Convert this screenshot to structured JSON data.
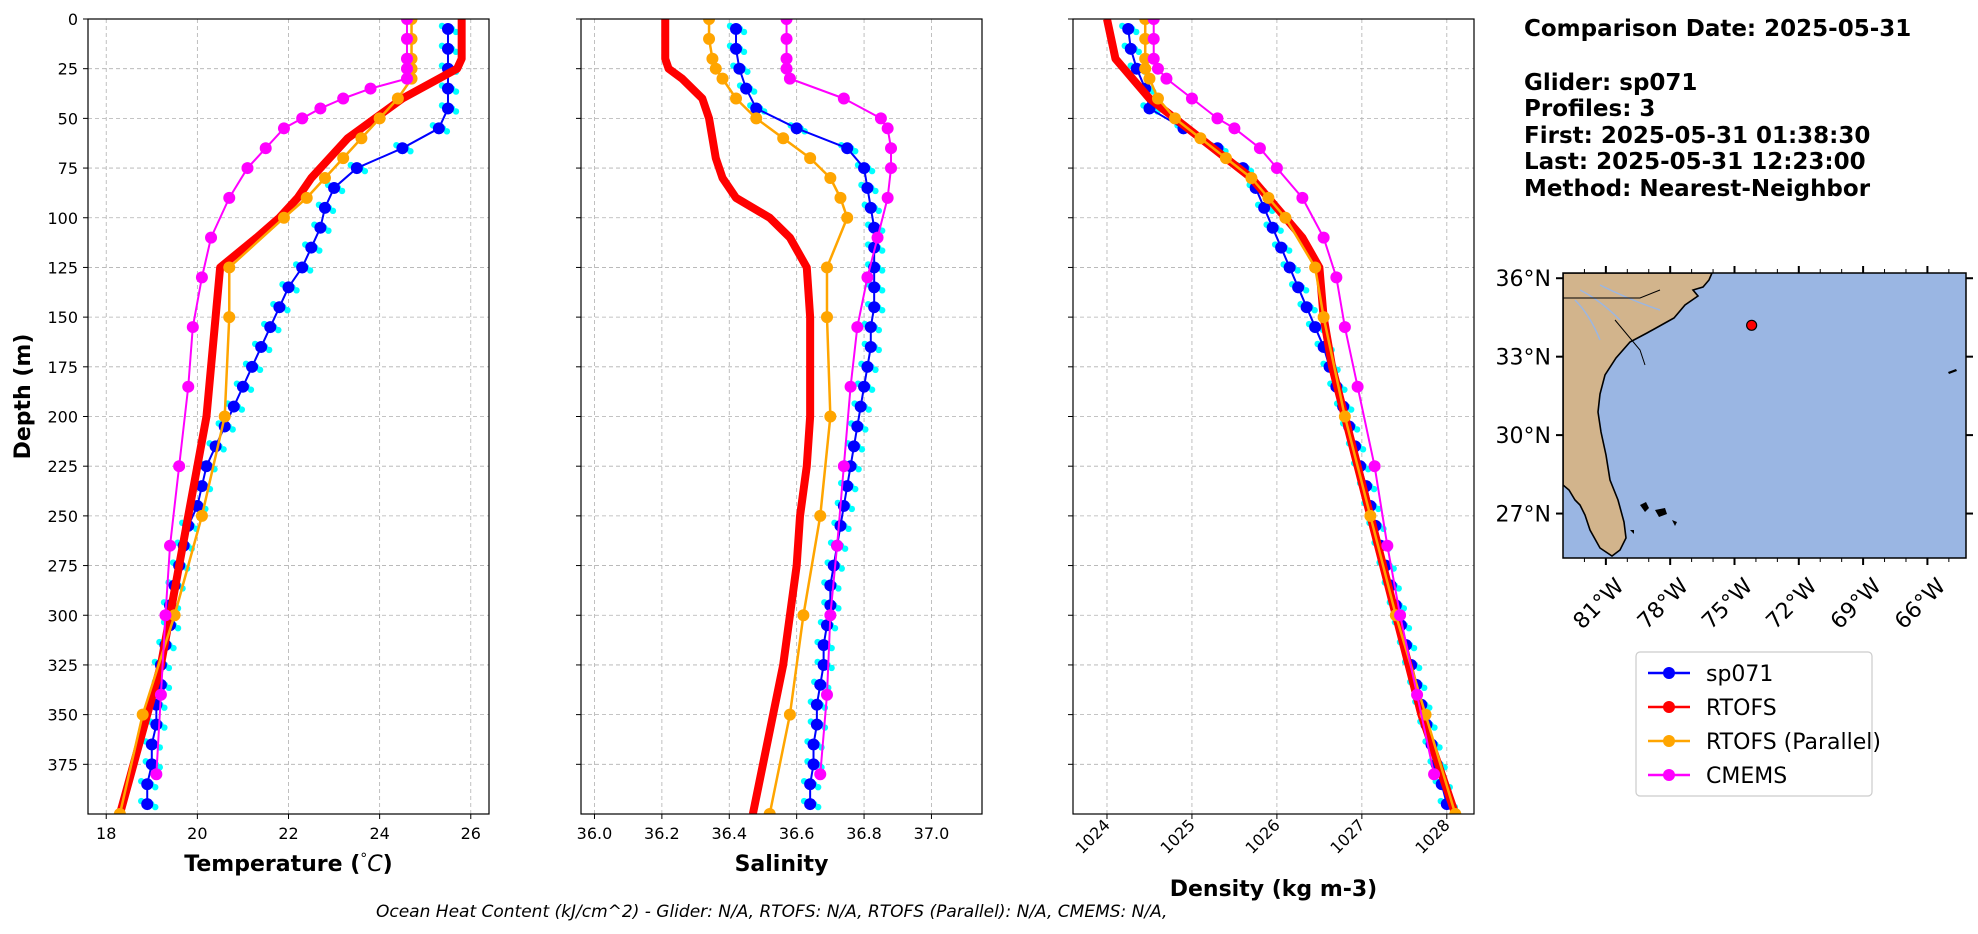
{
  "info": {
    "comparison_date": "Comparison Date: 2025-05-31",
    "glider": "Glider: sp071",
    "profiles": "Profiles: 3",
    "first": "First: 2025-05-31 01:38:30",
    "last": "Last: 2025-05-31 12:23:00",
    "method": "Method: Nearest-Neighbor"
  },
  "footer": "Ocean Heat Content (kJ/cm^2) - Glider: N/A,  RTOFS: N/A,  RTOFS (Parallel): N/A,  CMEMS: N/A,",
  "colors": {
    "glider": "#0000ff",
    "glider_scatter": "#00ffff",
    "rtofs": "#ff0000",
    "rtofs_parallel": "#ffa500",
    "cmems": "#ff00ff",
    "land": "#d2b48c",
    "ocean": "#9ab6e3"
  },
  "legend": [
    "sp071",
    "RTOFS",
    "RTOFS (Parallel)",
    "CMEMS"
  ],
  "map": {
    "lat_labels": [
      "36°N",
      "33°N",
      "30°N",
      "27°N"
    ],
    "lon_labels": [
      "81°W",
      "78°W",
      "75°W",
      "72°W",
      "69°W",
      "66°W"
    ],
    "glider_marker": {
      "lon": -74.2,
      "lat": 34.2
    }
  },
  "chart_data": [
    {
      "type": "line",
      "xlabel": "Temperature (°C)",
      "ylabel": "Depth (m)",
      "xlim": [
        17.6,
        26.4
      ],
      "ylim": [
        400,
        0
      ],
      "x_ticks": [
        "18",
        "20",
        "22",
        "24",
        "26"
      ],
      "y_ticks": [
        "0",
        "25",
        "50",
        "75",
        "100",
        "125",
        "150",
        "175",
        "200",
        "225",
        "250",
        "275",
        "300",
        "325",
        "350",
        "375"
      ],
      "grid": true,
      "series": [
        {
          "name": "sp071",
          "depth": [
            5,
            15,
            25,
            35,
            45,
            55,
            65,
            75,
            85,
            95,
            105,
            115,
            125,
            135,
            145,
            155,
            165,
            175,
            185,
            195,
            205,
            215,
            225,
            235,
            245,
            255,
            265,
            275,
            285,
            295,
            305,
            315,
            325,
            335,
            345,
            355,
            365,
            375,
            385,
            395
          ],
          "values": [
            25.5,
            25.5,
            25.5,
            25.5,
            25.5,
            25.3,
            24.5,
            23.5,
            23.0,
            22.8,
            22.7,
            22.5,
            22.3,
            22.0,
            21.8,
            21.6,
            21.4,
            21.2,
            21.0,
            20.8,
            20.6,
            20.4,
            20.2,
            20.1,
            20.0,
            19.8,
            19.7,
            19.6,
            19.5,
            19.4,
            19.4,
            19.3,
            19.2,
            19.2,
            19.1,
            19.1,
            19.0,
            19.0,
            18.9,
            18.9
          ]
        },
        {
          "name": "RTOFS",
          "depth": [
            0,
            10,
            20,
            25,
            30,
            40,
            50,
            60,
            70,
            80,
            90,
            100,
            110,
            125,
            150,
            175,
            200,
            225,
            250,
            275,
            300,
            325,
            350,
            375,
            400
          ],
          "values": [
            25.8,
            25.8,
            25.8,
            25.7,
            25.3,
            24.5,
            23.9,
            23.3,
            22.9,
            22.5,
            22.2,
            21.8,
            21.3,
            20.5,
            20.4,
            20.3,
            20.2,
            20.0,
            19.8,
            19.6,
            19.4,
            19.2,
            18.9,
            18.6,
            18.3
          ]
        },
        {
          "name": "RTOFS (Parallel)",
          "depth": [
            0,
            10,
            20,
            25,
            30,
            40,
            50,
            60,
            70,
            80,
            90,
            100,
            125,
            150,
            200,
            250,
            300,
            350,
            400
          ],
          "values": [
            24.7,
            24.7,
            24.7,
            24.7,
            24.7,
            24.4,
            24.0,
            23.6,
            23.2,
            22.8,
            22.4,
            21.9,
            20.7,
            20.7,
            20.6,
            20.1,
            19.5,
            18.8,
            18.3
          ]
        },
        {
          "name": "CMEMS",
          "depth": [
            0,
            10,
            20,
            25,
            30,
            35,
            40,
            45,
            50,
            55,
            65,
            75,
            90,
            110,
            130,
            155,
            185,
            225,
            265,
            300,
            340,
            380
          ],
          "values": [
            24.6,
            24.6,
            24.6,
            24.6,
            24.6,
            23.8,
            23.2,
            22.7,
            22.3,
            21.9,
            21.5,
            21.1,
            20.7,
            20.3,
            20.1,
            19.9,
            19.8,
            19.6,
            19.4,
            19.3,
            19.2,
            19.1
          ]
        }
      ]
    },
    {
      "type": "line",
      "xlabel": "Salinity",
      "ylim": [
        400,
        0
      ],
      "xlim": [
        35.96,
        37.15
      ],
      "x_ticks": [
        "36.0",
        "36.2",
        "36.4",
        "36.6",
        "36.8",
        "37.0"
      ],
      "grid": true,
      "series": [
        {
          "name": "sp071",
          "depth": [
            5,
            15,
            25,
            35,
            45,
            55,
            65,
            75,
            85,
            95,
            105,
            115,
            125,
            135,
            145,
            155,
            165,
            175,
            185,
            195,
            205,
            215,
            225,
            235,
            245,
            255,
            265,
            275,
            285,
            295,
            305,
            315,
            325,
            335,
            345,
            355,
            365,
            375,
            385,
            395
          ],
          "values": [
            36.42,
            36.42,
            36.43,
            36.45,
            36.48,
            36.6,
            36.75,
            36.8,
            36.81,
            36.82,
            36.83,
            36.83,
            36.83,
            36.83,
            36.83,
            36.82,
            36.82,
            36.81,
            36.8,
            36.79,
            36.78,
            36.77,
            36.76,
            36.75,
            36.74,
            36.73,
            36.72,
            36.71,
            36.7,
            36.7,
            36.69,
            36.68,
            36.68,
            36.67,
            36.66,
            36.66,
            36.65,
            36.65,
            36.64,
            36.64
          ]
        },
        {
          "name": "RTOFS",
          "depth": [
            0,
            10,
            20,
            25,
            30,
            40,
            50,
            60,
            70,
            80,
            90,
            100,
            110,
            125,
            150,
            175,
            200,
            225,
            250,
            275,
            300,
            325,
            350,
            375,
            400
          ],
          "values": [
            36.21,
            36.21,
            36.21,
            36.22,
            36.26,
            36.32,
            36.34,
            36.35,
            36.36,
            36.38,
            36.42,
            36.52,
            36.58,
            36.63,
            36.64,
            36.64,
            36.64,
            36.63,
            36.61,
            36.6,
            36.58,
            36.56,
            36.53,
            36.5,
            36.47
          ]
        },
        {
          "name": "RTOFS (Parallel)",
          "depth": [
            0,
            10,
            20,
            25,
            30,
            40,
            50,
            60,
            70,
            80,
            90,
            100,
            125,
            150,
            200,
            250,
            300,
            350,
            400
          ],
          "values": [
            36.34,
            36.34,
            36.35,
            36.36,
            36.38,
            36.42,
            36.48,
            36.56,
            36.64,
            36.7,
            36.73,
            36.75,
            36.69,
            36.69,
            36.7,
            36.67,
            36.62,
            36.58,
            36.52
          ]
        },
        {
          "name": "CMEMS",
          "depth": [
            0,
            10,
            20,
            25,
            30,
            40,
            50,
            55,
            65,
            75,
            90,
            110,
            130,
            155,
            185,
            225,
            265,
            300,
            340,
            380
          ],
          "values": [
            36.57,
            36.57,
            36.57,
            36.57,
            36.58,
            36.74,
            36.85,
            36.87,
            36.88,
            36.88,
            36.87,
            36.84,
            36.81,
            36.78,
            36.76,
            36.74,
            36.72,
            36.7,
            36.69,
            36.67
          ]
        }
      ]
    },
    {
      "type": "line",
      "xlabel": "Density (kg m-3)",
      "ylim": [
        400,
        0
      ],
      "xlim": [
        1023.6,
        1028.32
      ],
      "x_ticks": [
        "1024",
        "1025",
        "1026",
        "1027",
        "1028"
      ],
      "grid": true,
      "series": [
        {
          "name": "sp071",
          "depth": [
            5,
            15,
            25,
            35,
            45,
            55,
            65,
            75,
            85,
            95,
            105,
            115,
            125,
            135,
            145,
            155,
            165,
            175,
            185,
            195,
            205,
            215,
            225,
            235,
            245,
            255,
            265,
            275,
            285,
            295,
            305,
            315,
            325,
            335,
            345,
            355,
            365,
            375,
            385,
            395
          ],
          "values": [
            1024.25,
            1024.28,
            1024.35,
            1024.45,
            1024.5,
            1024.9,
            1025.3,
            1025.6,
            1025.75,
            1025.85,
            1025.95,
            1026.05,
            1026.15,
            1026.25,
            1026.35,
            1026.45,
            1026.55,
            1026.62,
            1026.7,
            1026.78,
            1026.85,
            1026.92,
            1026.98,
            1027.05,
            1027.1,
            1027.16,
            1027.22,
            1027.28,
            1027.34,
            1027.4,
            1027.46,
            1027.52,
            1027.58,
            1027.64,
            1027.7,
            1027.76,
            1027.82,
            1027.88,
            1027.94,
            1028.0
          ]
        },
        {
          "name": "RTOFS",
          "depth": [
            0,
            10,
            20,
            25,
            30,
            40,
            50,
            60,
            70,
            80,
            90,
            100,
            110,
            125,
            150,
            175,
            200,
            225,
            250,
            275,
            300,
            325,
            350,
            375,
            400
          ],
          "values": [
            1024.0,
            1024.05,
            1024.1,
            1024.2,
            1024.3,
            1024.5,
            1024.8,
            1025.1,
            1025.4,
            1025.7,
            1025.9,
            1026.1,
            1026.3,
            1026.5,
            1026.55,
            1026.65,
            1026.8,
            1026.95,
            1027.1,
            1027.25,
            1027.4,
            1027.55,
            1027.7,
            1027.9,
            1028.1
          ]
        },
        {
          "name": "RTOFS (Parallel)",
          "depth": [
            0,
            10,
            20,
            25,
            30,
            40,
            50,
            60,
            70,
            80,
            90,
            100,
            125,
            150,
            200,
            250,
            300,
            350,
            400
          ],
          "values": [
            1024.45,
            1024.45,
            1024.45,
            1024.45,
            1024.5,
            1024.6,
            1024.8,
            1025.1,
            1025.4,
            1025.7,
            1025.9,
            1026.1,
            1026.45,
            1026.55,
            1026.8,
            1027.1,
            1027.4,
            1027.75,
            1028.1
          ]
        },
        {
          "name": "CMEMS",
          "depth": [
            0,
            10,
            20,
            25,
            30,
            40,
            50,
            55,
            65,
            75,
            90,
            110,
            130,
            155,
            185,
            225,
            265,
            300,
            340,
            380
          ],
          "values": [
            1024.55,
            1024.55,
            1024.55,
            1024.6,
            1024.7,
            1025.0,
            1025.3,
            1025.5,
            1025.8,
            1026.0,
            1026.3,
            1026.55,
            1026.7,
            1026.8,
            1026.95,
            1027.15,
            1027.3,
            1027.45,
            1027.65,
            1027.85
          ]
        }
      ]
    }
  ]
}
